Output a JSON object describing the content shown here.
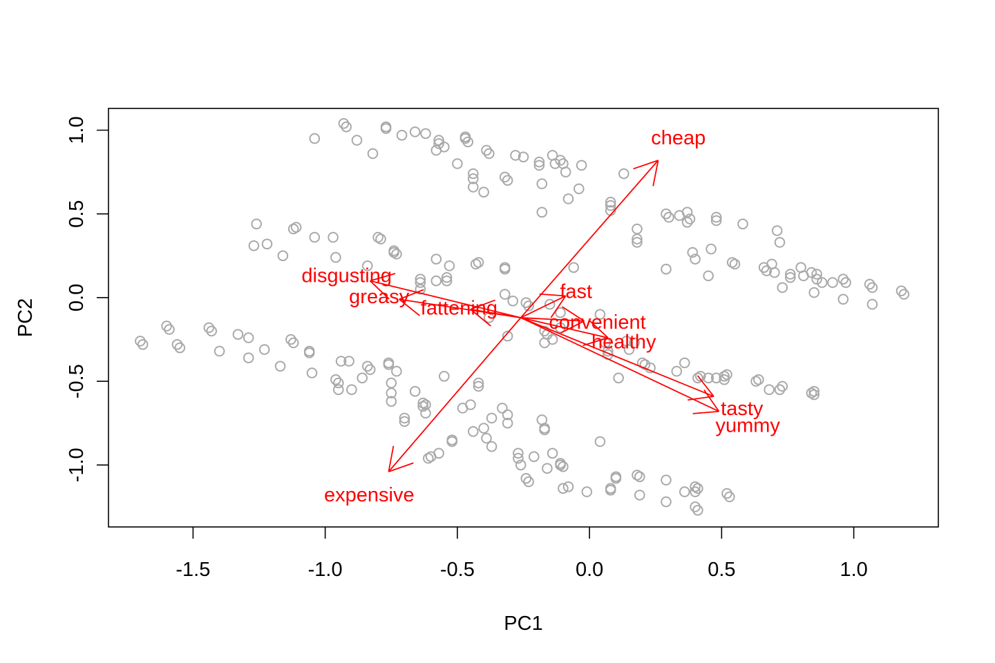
{
  "chart_data": {
    "type": "scatter",
    "title": "",
    "xlabel": "PC1",
    "ylabel": "PC2",
    "xlim": [
      -1.82,
      1.32
    ],
    "ylim": [
      -1.37,
      1.13
    ],
    "xticks": [
      -1.5,
      -1.0,
      -0.5,
      0.0,
      0.5,
      1.0
    ],
    "xtick_labels": [
      "-1.5",
      "-1.0",
      "-0.5",
      "0.0",
      "0.5",
      "1.0"
    ],
    "yticks": [
      -1.0,
      -0.5,
      0.0,
      0.5,
      1.0
    ],
    "ytick_labels": [
      "-1.0",
      "-0.5",
      "0.0",
      "0.5",
      "1.0"
    ],
    "point_color": "#a9a9a9",
    "arrow_color": "#ff0000",
    "grid": false,
    "legend": "none",
    "arrow_origin": [
      -0.26,
      -0.12
    ],
    "loadings": [
      {
        "label": "cheap",
        "x": 0.26,
        "y": 0.82
      },
      {
        "label": "expensive",
        "x": -0.76,
        "y": -1.04
      },
      {
        "label": "disgusting",
        "x": -0.83,
        "y": 0.1
      },
      {
        "label": "greasy",
        "x": -0.72,
        "y": -0.01
      },
      {
        "label": "fattening",
        "x": -0.45,
        "y": -0.07
      },
      {
        "label": "fast",
        "x": -0.09,
        "y": 0.01
      },
      {
        "label": "convenient",
        "x": -0.02,
        "y": -0.14
      },
      {
        "label": "healthy",
        "x": 0.07,
        "y": -0.24
      },
      {
        "label": "tasty",
        "x": 0.47,
        "y": -0.59
      },
      {
        "label": "yummy",
        "x": 0.49,
        "y": -0.68
      }
    ],
    "points": [
      [
        -1.04,
        0.95
      ],
      [
        -0.93,
        1.04
      ],
      [
        -0.92,
        1.02
      ],
      [
        -0.88,
        0.94
      ],
      [
        -0.82,
        0.86
      ],
      [
        -0.77,
        1.02
      ],
      [
        -0.77,
        1.01
      ],
      [
        -0.71,
        0.97
      ],
      [
        -0.66,
        0.99
      ],
      [
        -0.62,
        0.98
      ],
      [
        -0.57,
        0.94
      ],
      [
        -0.57,
        0.92
      ],
      [
        -0.58,
        0.88
      ],
      [
        -0.55,
        0.9
      ],
      [
        -0.5,
        0.8
      ],
      [
        -0.47,
        0.96
      ],
      [
        -0.47,
        0.95
      ],
      [
        -0.46,
        0.93
      ],
      [
        -0.44,
        0.74
      ],
      [
        -0.44,
        0.71
      ],
      [
        -0.44,
        0.66
      ],
      [
        -0.4,
        0.63
      ],
      [
        -0.39,
        0.88
      ],
      [
        -0.38,
        0.86
      ],
      [
        -0.32,
        0.72
      ],
      [
        -0.31,
        0.7
      ],
      [
        -0.28,
        0.85
      ],
      [
        -0.25,
        0.84
      ],
      [
        -0.19,
        0.81
      ],
      [
        -0.19,
        0.79
      ],
      [
        -0.18,
        0.68
      ],
      [
        -0.18,
        0.51
      ],
      [
        -0.14,
        0.85
      ],
      [
        -0.13,
        0.8
      ],
      [
        -0.11,
        0.82
      ],
      [
        -0.1,
        0.8
      ],
      [
        -0.09,
        0.75
      ],
      [
        -0.08,
        0.59
      ],
      [
        -0.03,
        0.79
      ],
      [
        -0.04,
        0.65
      ],
      [
        0.13,
        0.74
      ],
      [
        0.08,
        0.57
      ],
      [
        0.08,
        0.55
      ],
      [
        0.08,
        0.52
      ],
      [
        -0.06,
        0.18
      ],
      [
        -1.26,
        0.44
      ],
      [
        -1.27,
        0.31
      ],
      [
        -1.22,
        0.32
      ],
      [
        -1.16,
        0.25
      ],
      [
        -1.11,
        0.42
      ],
      [
        -1.12,
        0.41
      ],
      [
        -1.04,
        0.36
      ],
      [
        -0.97,
        0.36
      ],
      [
        -0.96,
        0.24
      ],
      [
        -0.84,
        0.19
      ],
      [
        -0.8,
        0.36
      ],
      [
        -0.79,
        0.35
      ],
      [
        -0.74,
        0.27
      ],
      [
        -0.74,
        0.28
      ],
      [
        -0.73,
        0.26
      ],
      [
        -0.64,
        0.11
      ],
      [
        -0.64,
        0.09
      ],
      [
        -0.64,
        0.05
      ],
      [
        -0.58,
        0.23
      ],
      [
        -0.58,
        0.1
      ],
      [
        -0.54,
        0.1
      ],
      [
        -0.53,
        0.19
      ],
      [
        -0.54,
        0.12
      ],
      [
        -0.42,
        0.21
      ],
      [
        -0.43,
        0.2
      ],
      [
        -0.32,
        0.18
      ],
      [
        -0.32,
        0.17
      ],
      [
        -0.32,
        0.02
      ],
      [
        -0.29,
        -0.02
      ],
      [
        -0.24,
        -0.03
      ],
      [
        -0.23,
        -0.05
      ],
      [
        -0.15,
        -0.04
      ],
      [
        -0.38,
        -0.12
      ],
      [
        -0.31,
        -0.23
      ],
      [
        -0.17,
        -0.2
      ],
      [
        -0.17,
        -0.27
      ],
      [
        -0.16,
        -0.22
      ],
      [
        -0.14,
        -0.25
      ],
      [
        -0.11,
        -0.09
      ],
      [
        -0.11,
        -0.18
      ],
      [
        0.04,
        -0.1
      ],
      [
        0.06,
        -0.27
      ],
      [
        0.07,
        -0.32
      ],
      [
        0.07,
        -0.34
      ],
      [
        0.11,
        -0.48
      ],
      [
        0.14,
        -0.26
      ],
      [
        0.15,
        -0.31
      ],
      [
        0.17,
        -0.27
      ],
      [
        0.18,
        0.41
      ],
      [
        0.18,
        0.35
      ],
      [
        0.18,
        0.33
      ],
      [
        0.29,
        0.5
      ],
      [
        0.3,
        0.48
      ],
      [
        0.29,
        0.17
      ],
      [
        0.34,
        0.49
      ],
      [
        0.37,
        0.51
      ],
      [
        0.38,
        0.47
      ],
      [
        0.37,
        0.45
      ],
      [
        0.39,
        0.27
      ],
      [
        0.4,
        0.23
      ],
      [
        0.46,
        0.29
      ],
      [
        0.48,
        0.48
      ],
      [
        0.48,
        0.46
      ],
      [
        0.45,
        0.13
      ],
      [
        0.58,
        0.44
      ],
      [
        0.54,
        0.21
      ],
      [
        0.55,
        0.2
      ],
      [
        0.66,
        0.18
      ],
      [
        0.67,
        0.16
      ],
      [
        0.69,
        0.2
      ],
      [
        0.7,
        0.15
      ],
      [
        0.71,
        0.4
      ],
      [
        0.72,
        0.33
      ],
      [
        0.73,
        0.06
      ],
      [
        0.76,
        0.14
      ],
      [
        0.76,
        0.12
      ],
      [
        0.8,
        0.18
      ],
      [
        0.81,
        0.13
      ],
      [
        0.84,
        0.15
      ],
      [
        0.86,
        0.14
      ],
      [
        0.86,
        0.11
      ],
      [
        0.88,
        0.09
      ],
      [
        0.92,
        0.09
      ],
      [
        0.96,
        0.11
      ],
      [
        0.96,
        -0.01
      ],
      [
        0.97,
        0.09
      ],
      [
        1.06,
        0.08
      ],
      [
        1.07,
        0.06
      ],
      [
        1.07,
        -0.04
      ],
      [
        1.18,
        0.04
      ],
      [
        1.19,
        0.02
      ],
      [
        0.85,
        0.03
      ],
      [
        0.2,
        -0.39
      ],
      [
        0.21,
        -0.4
      ],
      [
        0.23,
        -0.42
      ],
      [
        0.36,
        -0.39
      ],
      [
        0.33,
        -0.44
      ],
      [
        0.41,
        -0.48
      ],
      [
        0.42,
        -0.47
      ],
      [
        0.45,
        -0.48
      ],
      [
        0.48,
        -0.48
      ],
      [
        0.51,
        -0.47
      ],
      [
        0.52,
        -0.46
      ],
      [
        0.51,
        -0.49
      ],
      [
        0.63,
        -0.5
      ],
      [
        0.64,
        -0.49
      ],
      [
        0.68,
        -0.55
      ],
      [
        0.72,
        -0.55
      ],
      [
        0.73,
        -0.53
      ],
      [
        0.84,
        -0.57
      ],
      [
        0.85,
        -0.56
      ],
      [
        0.85,
        -0.58
      ],
      [
        -1.7,
        -0.26
      ],
      [
        -1.69,
        -0.28
      ],
      [
        -1.6,
        -0.17
      ],
      [
        -1.59,
        -0.19
      ],
      [
        -1.56,
        -0.28
      ],
      [
        -1.55,
        -0.3
      ],
      [
        -1.44,
        -0.18
      ],
      [
        -1.43,
        -0.2
      ],
      [
        -1.4,
        -0.32
      ],
      [
        -1.33,
        -0.22
      ],
      [
        -1.29,
        -0.24
      ],
      [
        -1.29,
        -0.36
      ],
      [
        -1.23,
        -0.31
      ],
      [
        -1.17,
        -0.41
      ],
      [
        -1.13,
        -0.25
      ],
      [
        -1.12,
        -0.27
      ],
      [
        -1.06,
        -0.32
      ],
      [
        -1.06,
        -0.33
      ],
      [
        -1.05,
        -0.45
      ],
      [
        -0.96,
        -0.49
      ],
      [
        -0.95,
        -0.51
      ],
      [
        -0.95,
        -0.55
      ],
      [
        -0.94,
        -0.38
      ],
      [
        -0.91,
        -0.38
      ],
      [
        -0.9,
        -0.55
      ],
      [
        -0.86,
        -0.48
      ],
      [
        -0.84,
        -0.41
      ],
      [
        -0.83,
        -0.43
      ],
      [
        -0.76,
        -0.39
      ],
      [
        -0.76,
        -0.4
      ],
      [
        -0.75,
        -0.51
      ],
      [
        -0.75,
        -0.57
      ],
      [
        -0.75,
        -0.62
      ],
      [
        -0.73,
        -0.44
      ],
      [
        -0.7,
        -0.72
      ],
      [
        -0.7,
        -0.74
      ],
      [
        -0.66,
        -0.56
      ],
      [
        -0.63,
        -0.63
      ],
      [
        -0.63,
        -0.65
      ],
      [
        -0.62,
        -0.69
      ],
      [
        -0.62,
        -0.64
      ],
      [
        -0.6,
        -0.95
      ],
      [
        -0.61,
        -0.96
      ],
      [
        -0.57,
        -0.93
      ],
      [
        -0.55,
        -0.47
      ],
      [
        -0.52,
        -0.85
      ],
      [
        -0.52,
        -0.86
      ],
      [
        -0.48,
        -0.66
      ],
      [
        -0.45,
        -0.64
      ],
      [
        -0.44,
        -0.8
      ],
      [
        -0.42,
        -0.51
      ],
      [
        -0.42,
        -0.53
      ],
      [
        -0.4,
        -0.78
      ],
      [
        -0.39,
        -0.84
      ],
      [
        -0.37,
        -0.72
      ],
      [
        -0.37,
        -0.89
      ],
      [
        -0.33,
        -0.66
      ],
      [
        -0.31,
        -0.7
      ],
      [
        -0.31,
        -0.75
      ],
      [
        -0.27,
        -0.93
      ],
      [
        -0.27,
        -0.96
      ],
      [
        -0.26,
        -1.0
      ],
      [
        -0.24,
        -1.08
      ],
      [
        -0.23,
        -1.1
      ],
      [
        -0.21,
        -0.95
      ],
      [
        -0.18,
        -0.73
      ],
      [
        -0.17,
        -0.78
      ],
      [
        -0.17,
        -0.79
      ],
      [
        -0.16,
        -1.02
      ],
      [
        -0.14,
        -0.93
      ],
      [
        -0.11,
        -0.99
      ],
      [
        -0.11,
        -1.0
      ],
      [
        -0.1,
        -1.01
      ],
      [
        -0.1,
        -1.14
      ],
      [
        -0.08,
        -1.13
      ],
      [
        -0.01,
        -1.16
      ],
      [
        0.04,
        -0.86
      ],
      [
        0.08,
        -1.14
      ],
      [
        0.08,
        -1.15
      ],
      [
        0.1,
        -1.07
      ],
      [
        0.1,
        -1.08
      ],
      [
        0.18,
        -1.06
      ],
      [
        0.19,
        -1.07
      ],
      [
        0.19,
        -1.18
      ],
      [
        0.29,
        -1.09
      ],
      [
        0.29,
        -1.22
      ],
      [
        0.36,
        -1.16
      ],
      [
        0.4,
        -1.13
      ],
      [
        0.4,
        -1.16
      ],
      [
        0.41,
        -1.14
      ],
      [
        0.4,
        -1.25
      ],
      [
        0.41,
        -1.27
      ],
      [
        0.52,
        -1.17
      ],
      [
        0.53,
        -1.19
      ]
    ]
  }
}
